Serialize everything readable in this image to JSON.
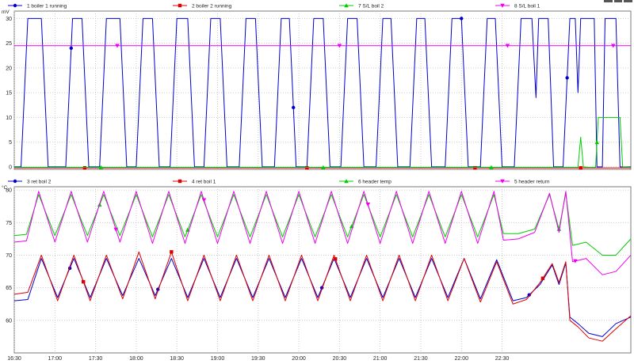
{
  "chart_data": [
    {
      "type": "line",
      "unit_label": "mV",
      "ylim": [
        -0.5,
        31.5
      ],
      "y_ticks": [
        "0",
        "5",
        "10",
        "15",
        "20",
        "25",
        "30"
      ],
      "grid": true,
      "legend_position": "top",
      "series": [
        {
          "name": "1 boiler 1 running",
          "color": "#0000cc",
          "marker": "circle",
          "values": [
            [
              990,
              0
            ],
            [
              995,
              0
            ],
            [
              1000,
              30
            ],
            [
              1010,
              30
            ],
            [
              1015,
              0
            ],
            [
              1028,
              0
            ],
            [
              1033,
              30
            ],
            [
              1040,
              30
            ],
            [
              1045,
              0
            ],
            [
              1053,
              0
            ],
            [
              1058,
              30
            ],
            [
              1068,
              30
            ],
            [
              1073,
              0
            ],
            [
              1080,
              0
            ],
            [
              1085,
              30
            ],
            [
              1092,
              30
            ],
            [
              1097,
              0
            ],
            [
              1105,
              0
            ],
            [
              1110,
              30
            ],
            [
              1118,
              30
            ],
            [
              1123,
              0
            ],
            [
              1130,
              0
            ],
            [
              1135,
              30
            ],
            [
              1142,
              30
            ],
            [
              1147,
              0
            ],
            [
              1156,
              0
            ],
            [
              1161,
              30
            ],
            [
              1168,
              30
            ],
            [
              1173,
              0
            ],
            [
              1182,
              0
            ],
            [
              1187,
              30
            ],
            [
              1193,
              30
            ],
            [
              1198,
              0
            ],
            [
              1206,
              0
            ],
            [
              1211,
              30
            ],
            [
              1218,
              30
            ],
            [
              1223,
              0
            ],
            [
              1231,
              0
            ],
            [
              1236,
              30
            ],
            [
              1243,
              30
            ],
            [
              1248,
              0
            ],
            [
              1257,
              0
            ],
            [
              1262,
              30
            ],
            [
              1268,
              30
            ],
            [
              1273,
              0
            ],
            [
              1282,
              0
            ],
            [
              1287,
              30
            ],
            [
              1293,
              30
            ],
            [
              1298,
              0
            ],
            [
              1308,
              0
            ],
            [
              1313,
              30
            ],
            [
              1320,
              30
            ],
            [
              1325,
              0
            ],
            [
              1334,
              0
            ],
            [
              1339,
              30
            ],
            [
              1345,
              30
            ],
            [
              1350,
              0
            ],
            [
              1359,
              0
            ],
            [
              1364,
              30
            ],
            [
              1372,
              30
            ],
            [
              1375,
              14
            ],
            [
              1377,
              30
            ],
            [
              1384,
              30
            ],
            [
              1388,
              0
            ],
            [
              1395,
              0
            ],
            [
              1400,
              30
            ],
            [
              1404,
              30
            ],
            [
              1406,
              15
            ],
            [
              1408,
              30
            ],
            [
              1418,
              30
            ],
            [
              1420,
              0
            ],
            [
              1424,
              0
            ],
            [
              1426,
              30
            ],
            [
              1434,
              30
            ],
            [
              1437,
              0
            ],
            [
              1443,
              0
            ],
            [
              1445,
              0
            ]
          ]
        },
        {
          "name": "2 boiler 2 running",
          "color": "#dd0000",
          "marker": "square",
          "values": [
            [
              990,
              -0.2
            ],
            [
              1445,
              -0.2
            ]
          ]
        },
        {
          "name": "7 S/L boil 2",
          "color": "#00cc00",
          "marker": "triangle-up",
          "values": [
            [
              990,
              -0.1
            ],
            [
              1406,
              -0.1
            ],
            [
              1408,
              6
            ],
            [
              1410,
              0
            ],
            [
              1414,
              -0.1
            ],
            [
              1419,
              -0.1
            ],
            [
              1421,
              10
            ],
            [
              1437,
              10
            ],
            [
              1439,
              0
            ],
            [
              1445,
              -0.1
            ]
          ]
        },
        {
          "name": "8 S/L boil 1",
          "color": "#ee00ee",
          "marker": "triangle-down",
          "values": [
            [
              990,
              24.5
            ],
            [
              1445,
              24.5
            ]
          ]
        }
      ]
    },
    {
      "type": "line",
      "unit_label": "°C",
      "ylim": [
        55,
        80.5
      ],
      "y_ticks": [
        "60",
        "65",
        "70",
        "75",
        "80"
      ],
      "x_ticks": [
        "16:30",
        "17:00",
        "17:30",
        "18:00",
        "18:30",
        "19:00",
        "19:30",
        "20:00",
        "20:30",
        "21:00",
        "21:30",
        "22:00",
        "22:30"
      ],
      "grid": true,
      "legend_position": "top",
      "series": [
        {
          "name": "3 ret boil 2",
          "color": "#0000cc",
          "marker": "circle",
          "values": [
            [
              990,
              63
            ],
            [
              1000,
              63.2
            ],
            [
              1010,
              69.5
            ],
            [
              1022,
              63.5
            ],
            [
              1034,
              69.5
            ],
            [
              1046,
              63.5
            ],
            [
              1058,
              69.5
            ],
            [
              1070,
              63.8
            ],
            [
              1082,
              69.5
            ],
            [
              1094,
              63.8
            ],
            [
              1106,
              69.5
            ],
            [
              1118,
              63.5
            ],
            [
              1130,
              69.5
            ],
            [
              1142,
              63.5
            ],
            [
              1154,
              69.5
            ],
            [
              1166,
              63.5
            ],
            [
              1178,
              69.5
            ],
            [
              1190,
              63.5
            ],
            [
              1202,
              69.5
            ],
            [
              1214,
              63.5
            ],
            [
              1226,
              69.5
            ],
            [
              1238,
              63.5
            ],
            [
              1250,
              69.5
            ],
            [
              1262,
              63.5
            ],
            [
              1274,
              69.5
            ],
            [
              1286,
              63.5
            ],
            [
              1298,
              69.5
            ],
            [
              1310,
              63.5
            ],
            [
              1322,
              69.5
            ],
            [
              1334,
              63.3
            ],
            [
              1346,
              69.3
            ],
            [
              1358,
              63
            ],
            [
              1368,
              63.5
            ],
            [
              1378,
              65.5
            ],
            [
              1387,
              68.5
            ],
            [
              1392,
              65.5
            ],
            [
              1397,
              68.8
            ],
            [
              1400,
              60.5
            ],
            [
              1406,
              59.5
            ],
            [
              1414,
              58
            ],
            [
              1424,
              57.5
            ],
            [
              1434,
              59.5
            ],
            [
              1445,
              60.5
            ]
          ]
        },
        {
          "name": "4 ret boil 1",
          "color": "#dd0000",
          "marker": "square",
          "values": [
            [
              990,
              64
            ],
            [
              1000,
              64.3
            ],
            [
              1010,
              70
            ],
            [
              1022,
              63
            ],
            [
              1034,
              70
            ],
            [
              1046,
              63
            ],
            [
              1058,
              70
            ],
            [
              1070,
              63.3
            ],
            [
              1082,
              70.5
            ],
            [
              1094,
              63.3
            ],
            [
              1106,
              70.5
            ],
            [
              1118,
              63
            ],
            [
              1130,
              70
            ],
            [
              1142,
              63
            ],
            [
              1154,
              70
            ],
            [
              1166,
              63
            ],
            [
              1178,
              70
            ],
            [
              1190,
              63
            ],
            [
              1202,
              70
            ],
            [
              1214,
              63
            ],
            [
              1226,
              70
            ],
            [
              1238,
              63
            ],
            [
              1250,
              70
            ],
            [
              1262,
              63
            ],
            [
              1274,
              70
            ],
            [
              1286,
              63
            ],
            [
              1298,
              70
            ],
            [
              1310,
              63
            ],
            [
              1322,
              69.5
            ],
            [
              1334,
              62.8
            ],
            [
              1346,
              69
            ],
            [
              1358,
              62.5
            ],
            [
              1368,
              63.2
            ],
            [
              1378,
              65.8
            ],
            [
              1387,
              68.7
            ],
            [
              1392,
              65.8
            ],
            [
              1397,
              69
            ],
            [
              1400,
              60
            ],
            [
              1406,
              59
            ],
            [
              1414,
              57.3
            ],
            [
              1424,
              56.8
            ],
            [
              1434,
              58.7
            ],
            [
              1445,
              60.7
            ]
          ]
        },
        {
          "name": "6 header temp",
          "color": "#00cc00",
          "marker": "triangle-up",
          "values": [
            [
              990,
              73
            ],
            [
              999,
              73.2
            ],
            [
              1008,
              79.3
            ],
            [
              1020,
              73
            ],
            [
              1032,
              79.3
            ],
            [
              1044,
              73
            ],
            [
              1056,
              79.3
            ],
            [
              1068,
              73
            ],
            [
              1080,
              79.3
            ],
            [
              1092,
              72.8
            ],
            [
              1104,
              79.3
            ],
            [
              1116,
              72.8
            ],
            [
              1128,
              79.3
            ],
            [
              1140,
              72.8
            ],
            [
              1152,
              79.3
            ],
            [
              1164,
              72.8
            ],
            [
              1176,
              79.3
            ],
            [
              1188,
              72.8
            ],
            [
              1200,
              79.3
            ],
            [
              1212,
              72.8
            ],
            [
              1224,
              79.3
            ],
            [
              1236,
              72.8
            ],
            [
              1248,
              79.3
            ],
            [
              1260,
              72.8
            ],
            [
              1272,
              79.3
            ],
            [
              1284,
              72.8
            ],
            [
              1296,
              79.3
            ],
            [
              1308,
              72.8
            ],
            [
              1320,
              79.3
            ],
            [
              1332,
              72.8
            ],
            [
              1344,
              79.3
            ],
            [
              1351,
              73.3
            ],
            [
              1362,
              73.3
            ],
            [
              1374,
              74
            ],
            [
              1385,
              79.3
            ],
            [
              1392,
              74
            ],
            [
              1397,
              79.5
            ],
            [
              1402,
              71.5
            ],
            [
              1412,
              72
            ],
            [
              1424,
              70
            ],
            [
              1434,
              70
            ],
            [
              1445,
              72.5
            ]
          ]
        },
        {
          "name": "5 header return",
          "color": "#ee00ee",
          "marker": "triangle-down",
          "values": [
            [
              990,
              72
            ],
            [
              999,
              72.2
            ],
            [
              1008,
              79.8
            ],
            [
              1020,
              72
            ],
            [
              1032,
              79.8
            ],
            [
              1044,
              72
            ],
            [
              1056,
              79.8
            ],
            [
              1068,
              72
            ],
            [
              1080,
              79.8
            ],
            [
              1092,
              71.8
            ],
            [
              1104,
              79.8
            ],
            [
              1116,
              71.8
            ],
            [
              1128,
              79.8
            ],
            [
              1140,
              71.8
            ],
            [
              1152,
              79.8
            ],
            [
              1164,
              71.8
            ],
            [
              1176,
              79.8
            ],
            [
              1188,
              71.8
            ],
            [
              1200,
              79.8
            ],
            [
              1212,
              71.8
            ],
            [
              1224,
              79.8
            ],
            [
              1236,
              71.8
            ],
            [
              1248,
              79.8
            ],
            [
              1260,
              71.8
            ],
            [
              1272,
              79.8
            ],
            [
              1284,
              71.8
            ],
            [
              1296,
              79.8
            ],
            [
              1308,
              71.8
            ],
            [
              1320,
              79.8
            ],
            [
              1332,
              71.8
            ],
            [
              1344,
              79.8
            ],
            [
              1351,
              72.3
            ],
            [
              1362,
              72.5
            ],
            [
              1374,
              73.5
            ],
            [
              1385,
              79.5
            ],
            [
              1392,
              73.5
            ],
            [
              1397,
              79.8
            ],
            [
              1402,
              69
            ],
            [
              1412,
              69.5
            ],
            [
              1424,
              67
            ],
            [
              1434,
              67.5
            ],
            [
              1445,
              70
            ]
          ]
        }
      ]
    }
  ]
}
